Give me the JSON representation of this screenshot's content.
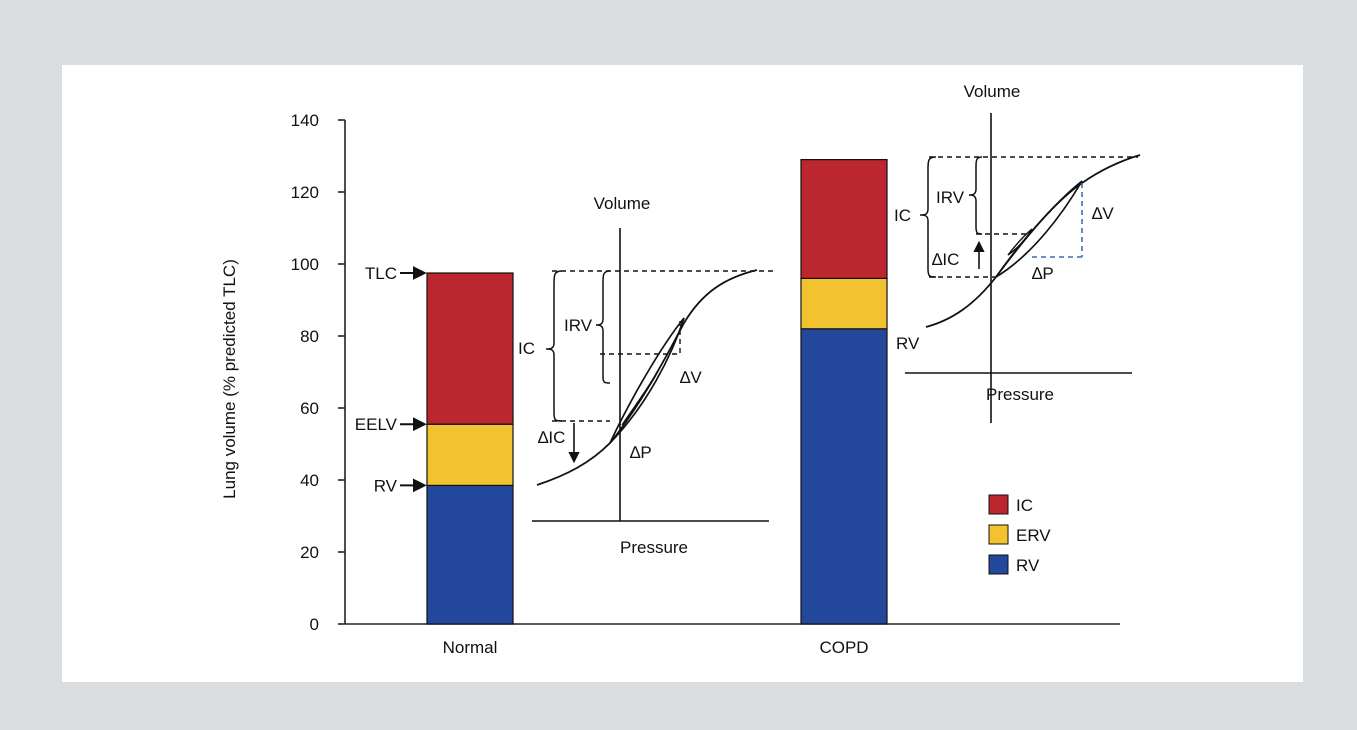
{
  "chart_data": {
    "type": "bar",
    "stacked": true,
    "ylabel": "Lung volume (% predicted TLC)",
    "ylim": [
      0,
      140
    ],
    "yticks": [
      0,
      20,
      40,
      60,
      80,
      100,
      120,
      140
    ],
    "categories": [
      "Normal",
      "COPD"
    ],
    "series": [
      {
        "name": "RV",
        "color": "#23479a",
        "values": [
          38.5,
          82
        ]
      },
      {
        "name": "ERV",
        "color": "#f2c230",
        "values": [
          17,
          14
        ]
      },
      {
        "name": "IC",
        "color": "#bb262f",
        "values": [
          42,
          33
        ]
      }
    ],
    "legend": {
      "position": "bottom-right",
      "order": [
        "IC",
        "ERV",
        "RV"
      ]
    },
    "normal_markers": [
      {
        "label": "TLC",
        "value": 97.5
      },
      {
        "label": "EELV",
        "value": 55.5
      },
      {
        "label": "RV",
        "value": 38.5
      }
    ],
    "copd_marker_label": "RV",
    "insets": [
      {
        "name": "normal",
        "y_axis_label": "Volume",
        "x_axis_label": "Pressure",
        "labels": {
          "ic": "IC",
          "irv": "IRV",
          "dic": "∆IC",
          "dv": "∆V",
          "dp": "∆P"
        }
      },
      {
        "name": "copd",
        "y_axis_label": "Volume",
        "x_axis_label": "Pressure",
        "labels": {
          "ic": "IC",
          "irv": "IRV",
          "dic": "∆IC",
          "dv": "∆V",
          "dp": "∆P"
        }
      }
    ]
  }
}
